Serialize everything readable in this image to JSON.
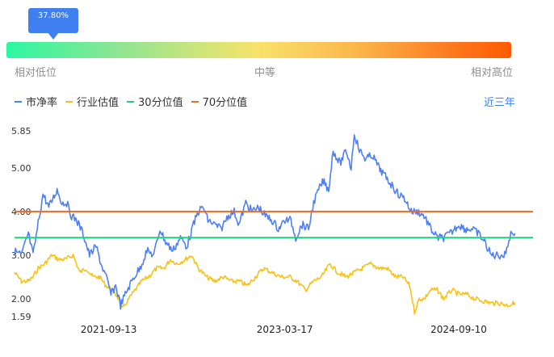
{
  "tooltip": {
    "value": "37.80%"
  },
  "gauge": {
    "fraction": 0.378,
    "labels": {
      "low": "相对低位",
      "mid": "中等",
      "high": "相对高位"
    }
  },
  "range_label": "近三年",
  "colors": {
    "pb": "#4f7ff5",
    "industry": "#f6c21a",
    "p30": "#19d47c",
    "p70": "#f26a1b",
    "accent": "#3f7ff0"
  },
  "chart_data": {
    "type": "line",
    "legend": [
      "市净率",
      "行业估值",
      "30分位值",
      "70分位值"
    ],
    "y_ticks": [
      5.85,
      5.0,
      4.0,
      3.0,
      2.0,
      1.59
    ],
    "y_tick_labels": [
      "5.85",
      "5.00",
      "4.00",
      "3.00",
      "2.00",
      "1.59"
    ],
    "ylim": [
      1.59,
      5.85
    ],
    "x_tick_labels": [
      "2021-09-13",
      "2023-03-17",
      "2024-09-10"
    ],
    "x_tick_dates": [
      "2021-09-13",
      "2023-03-17",
      "2024-09-10"
    ],
    "xlim": [
      "2020-11-23",
      "2025-04-30"
    ],
    "reference_lines": [
      {
        "name": "30分位值",
        "value": 3.4
      },
      {
        "name": "70分位值",
        "value": 4.0
      }
    ],
    "series": [
      {
        "name": "市净率",
        "points": [
          [
            "2020-11-23",
            3.1
          ],
          [
            "2020-12-15",
            3.0
          ],
          [
            "2021-01-05",
            3.5
          ],
          [
            "2021-01-20",
            3.0
          ],
          [
            "2021-02-02",
            3.6
          ],
          [
            "2021-02-20",
            4.4
          ],
          [
            "2021-03-10",
            4.1
          ],
          [
            "2021-04-05",
            4.5
          ],
          [
            "2021-04-20",
            4.2
          ],
          [
            "2021-05-05",
            4.2
          ],
          [
            "2021-05-20",
            3.9
          ],
          [
            "2021-06-05",
            3.8
          ],
          [
            "2021-06-25",
            3.5
          ],
          [
            "2021-07-15",
            3.0
          ],
          [
            "2021-08-05",
            3.2
          ],
          [
            "2021-08-20",
            2.8
          ],
          [
            "2021-09-05",
            2.5
          ],
          [
            "2021-09-20",
            2.1
          ],
          [
            "2021-10-05",
            2.3
          ],
          [
            "2021-10-20",
            1.85
          ],
          [
            "2021-11-10",
            2.2
          ],
          [
            "2021-12-01",
            2.5
          ],
          [
            "2021-12-20",
            2.7
          ],
          [
            "2022-01-10",
            3.1
          ],
          [
            "2022-02-01",
            3.0
          ],
          [
            "2022-02-20",
            3.6
          ],
          [
            "2022-03-10",
            3.3
          ],
          [
            "2022-04-01",
            3.1
          ],
          [
            "2022-04-25",
            3.4
          ],
          [
            "2022-05-15",
            3.2
          ],
          [
            "2022-06-05",
            3.7
          ],
          [
            "2022-06-20",
            4.0
          ],
          [
            "2022-07-05",
            4.1
          ],
          [
            "2022-07-20",
            3.8
          ],
          [
            "2022-08-10",
            3.7
          ],
          [
            "2022-08-30",
            3.6
          ],
          [
            "2022-09-20",
            3.9
          ],
          [
            "2022-10-10",
            4.0
          ],
          [
            "2022-10-25",
            3.7
          ],
          [
            "2022-11-15",
            4.2
          ],
          [
            "2022-12-05",
            4.0
          ],
          [
            "2022-12-25",
            4.1
          ],
          [
            "2023-01-15",
            3.9
          ],
          [
            "2023-02-05",
            3.8
          ],
          [
            "2023-02-25",
            3.6
          ],
          [
            "2023-03-17",
            3.8
          ],
          [
            "2023-04-05",
            3.8
          ],
          [
            "2023-04-20",
            3.4
          ],
          [
            "2023-05-10",
            3.7
          ],
          [
            "2023-05-30",
            3.6
          ],
          [
            "2023-06-15",
            4.2
          ],
          [
            "2023-07-01",
            4.5
          ],
          [
            "2023-07-15",
            4.7
          ],
          [
            "2023-08-01",
            4.5
          ],
          [
            "2023-08-15",
            5.4
          ],
          [
            "2023-09-05",
            5.1
          ],
          [
            "2023-09-25",
            5.4
          ],
          [
            "2023-10-10",
            5.0
          ],
          [
            "2023-10-20",
            5.8
          ],
          [
            "2023-11-05",
            5.4
          ],
          [
            "2023-11-25",
            5.2
          ],
          [
            "2023-12-15",
            5.3
          ],
          [
            "2024-01-05",
            5.0
          ],
          [
            "2024-01-25",
            4.8
          ],
          [
            "2024-02-15",
            4.6
          ],
          [
            "2024-03-05",
            4.4
          ],
          [
            "2024-03-25",
            4.3
          ],
          [
            "2024-04-15",
            4.0
          ],
          [
            "2024-05-05",
            4.0
          ],
          [
            "2024-05-25",
            3.9
          ],
          [
            "2024-06-15",
            3.6
          ],
          [
            "2024-07-05",
            3.4
          ],
          [
            "2024-07-25",
            3.4
          ],
          [
            "2024-08-15",
            3.5
          ],
          [
            "2024-09-10",
            3.7
          ],
          [
            "2024-09-30",
            3.6
          ],
          [
            "2024-10-20",
            3.6
          ],
          [
            "2024-11-10",
            3.5
          ],
          [
            "2024-11-30",
            3.3
          ],
          [
            "2024-12-20",
            3.0
          ],
          [
            "2025-01-10",
            3.0
          ],
          [
            "2025-02-01",
            3.0
          ],
          [
            "2025-02-20",
            3.5
          ],
          [
            "2025-03-05",
            3.5
          ]
        ]
      },
      {
        "name": "行业估值",
        "points": [
          [
            "2020-11-23",
            2.6
          ],
          [
            "2020-12-15",
            2.4
          ],
          [
            "2021-01-05",
            2.4
          ],
          [
            "2021-01-20",
            2.5
          ],
          [
            "2021-02-05",
            2.7
          ],
          [
            "2021-02-25",
            2.8
          ],
          [
            "2021-03-20",
            3.0
          ],
          [
            "2021-04-10",
            2.9
          ],
          [
            "2021-05-01",
            2.9
          ],
          [
            "2021-05-25",
            3.0
          ],
          [
            "2021-06-15",
            2.6
          ],
          [
            "2021-07-05",
            2.7
          ],
          [
            "2021-07-25",
            2.5
          ],
          [
            "2021-08-15",
            2.5
          ],
          [
            "2021-09-05",
            2.3
          ],
          [
            "2021-09-25",
            2.2
          ],
          [
            "2021-10-15",
            2.0
          ],
          [
            "2021-10-25",
            1.75
          ],
          [
            "2021-11-15",
            2.0
          ],
          [
            "2021-12-05",
            2.2
          ],
          [
            "2021-12-25",
            2.4
          ],
          [
            "2022-01-15",
            2.5
          ],
          [
            "2022-02-10",
            2.7
          ],
          [
            "2022-03-05",
            2.7
          ],
          [
            "2022-03-25",
            2.9
          ],
          [
            "2022-04-15",
            2.8
          ],
          [
            "2022-05-10",
            2.9
          ],
          [
            "2022-05-30",
            3.0
          ],
          [
            "2022-06-20",
            2.7
          ],
          [
            "2022-07-15",
            2.5
          ],
          [
            "2022-08-10",
            2.4
          ],
          [
            "2022-09-05",
            2.5
          ],
          [
            "2022-10-01",
            2.4
          ],
          [
            "2022-10-25",
            2.4
          ],
          [
            "2022-11-20",
            2.3
          ],
          [
            "2022-12-15",
            2.5
          ],
          [
            "2023-01-10",
            2.7
          ],
          [
            "2023-02-05",
            2.6
          ],
          [
            "2023-03-05",
            2.5
          ],
          [
            "2023-04-01",
            2.5
          ],
          [
            "2023-04-25",
            2.4
          ],
          [
            "2023-05-20",
            2.2
          ],
          [
            "2023-06-15",
            2.4
          ],
          [
            "2023-07-10",
            2.5
          ],
          [
            "2023-08-05",
            2.8
          ],
          [
            "2023-08-30",
            2.6
          ],
          [
            "2023-09-25",
            2.5
          ],
          [
            "2023-10-20",
            2.6
          ],
          [
            "2023-11-15",
            2.7
          ],
          [
            "2023-12-10",
            2.8
          ],
          [
            "2024-01-05",
            2.7
          ],
          [
            "2024-01-30",
            2.7
          ],
          [
            "2024-02-25",
            2.5
          ],
          [
            "2024-03-20",
            2.5
          ],
          [
            "2024-04-10",
            2.3
          ],
          [
            "2024-04-25",
            1.7
          ],
          [
            "2024-05-10",
            2.0
          ],
          [
            "2024-05-25",
            2.0
          ],
          [
            "2024-06-15",
            2.2
          ],
          [
            "2024-07-05",
            2.2
          ],
          [
            "2024-07-25",
            2.0
          ],
          [
            "2024-08-20",
            2.2
          ],
          [
            "2024-09-10",
            2.1
          ],
          [
            "2024-10-05",
            2.1
          ],
          [
            "2024-10-30",
            2.0
          ],
          [
            "2024-11-25",
            1.95
          ],
          [
            "2024-12-20",
            1.9
          ],
          [
            "2025-01-15",
            1.9
          ],
          [
            "2025-02-10",
            1.85
          ],
          [
            "2025-03-05",
            1.9
          ]
        ]
      }
    ]
  }
}
